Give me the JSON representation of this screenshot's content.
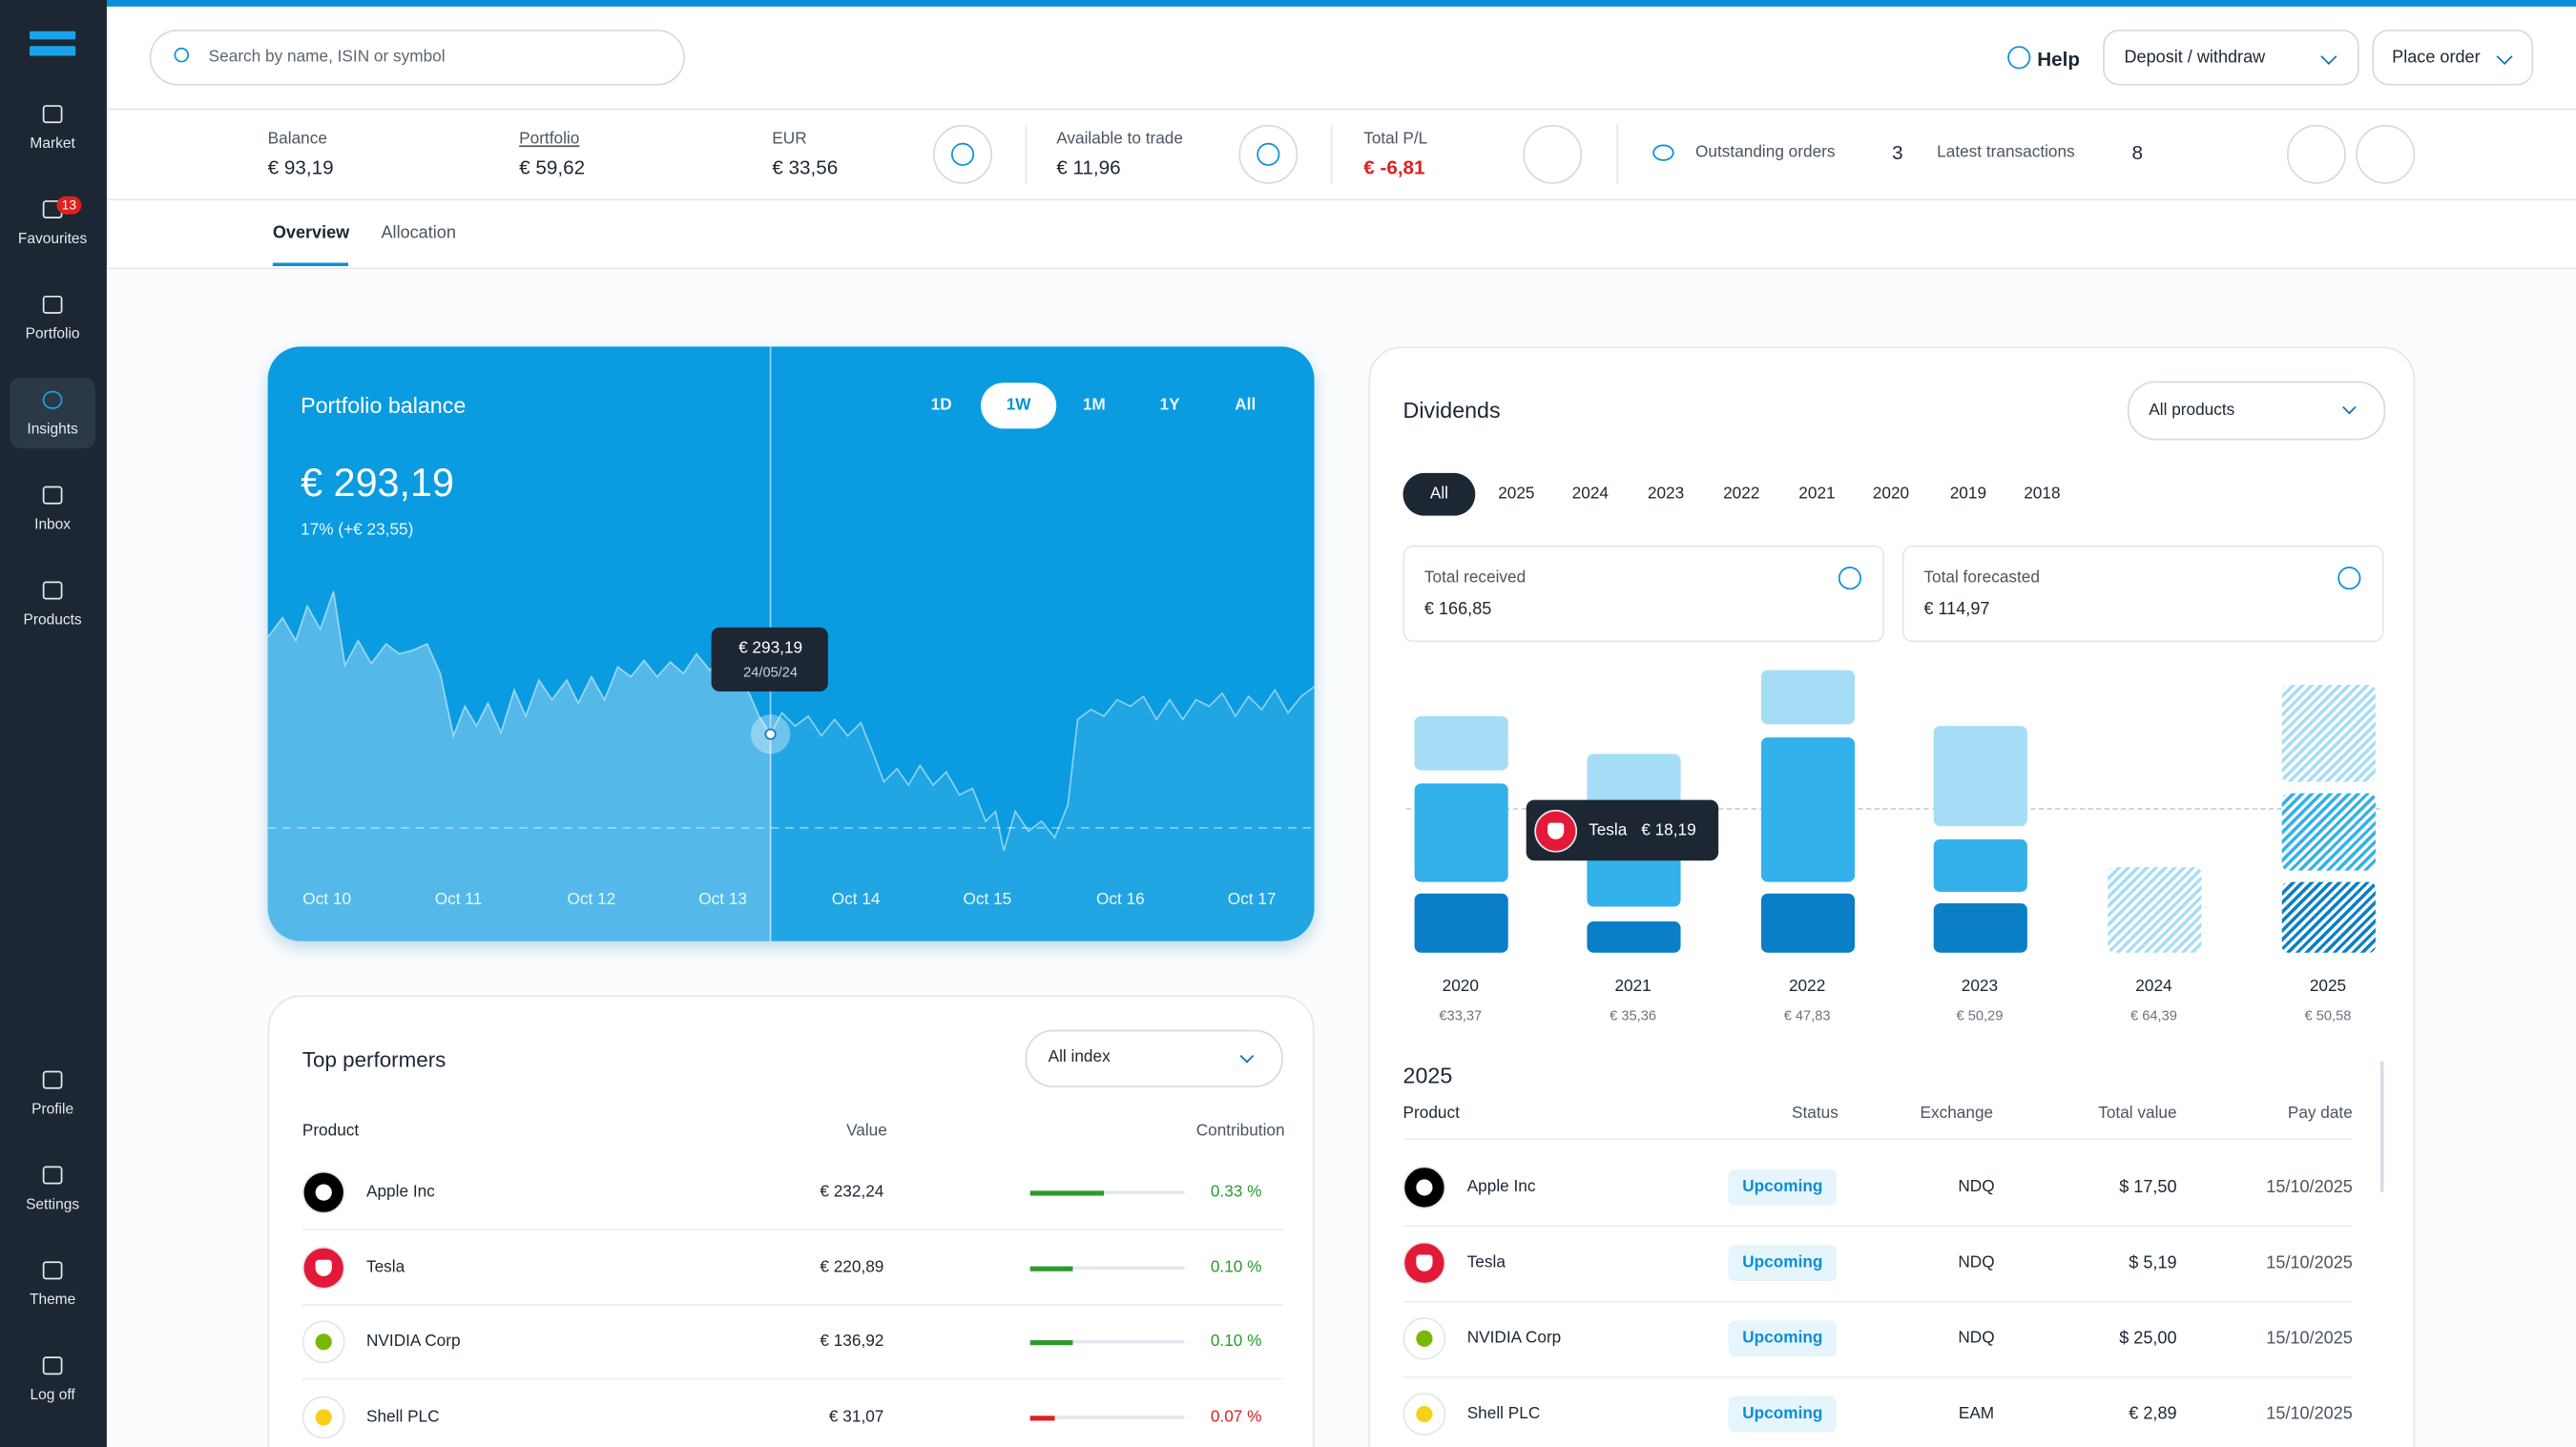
{
  "sidebar": {
    "top": [
      {
        "label": "Market"
      },
      {
        "label": "Favourites",
        "badge": 13
      },
      {
        "label": "Portfolio"
      },
      {
        "label": "Insights"
      },
      {
        "label": "Inbox"
      },
      {
        "label": "Products"
      }
    ],
    "bottom": [
      {
        "label": "Profile"
      },
      {
        "label": "Settings"
      },
      {
        "label": "Theme"
      },
      {
        "label": "Log off"
      }
    ]
  },
  "header": {
    "search_placeholder": "Search by name, ISIN or symbol",
    "help": "Help",
    "deposit": "Deposit / withdraw",
    "place_order": "Place order"
  },
  "summary": {
    "items": [
      {
        "label": "Balance",
        "value": "€ 93,19"
      },
      {
        "label": "Portfolio",
        "value": "€ 59,62"
      },
      {
        "label": "EUR",
        "value": "€ 33,56"
      },
      {
        "label": "Available to trade",
        "value": "€ 11,96"
      },
      {
        "label": "Total P/L",
        "value": "€ -6,81"
      }
    ],
    "outstanding_orders": {
      "label": "Outstanding orders",
      "value": 3
    },
    "latest_transactions": {
      "label": "Latest transactions",
      "value": 8
    }
  },
  "tabs": [
    "Overview",
    "Allocation"
  ],
  "portfolio_balance": {
    "title": "Portfolio balance",
    "ranges": [
      "1D",
      "1W",
      "1M",
      "1Y",
      "All"
    ],
    "value": "€ 293,19",
    "change": "17% (+€ 23,55)",
    "tooltip": {
      "value": "€ 293,19",
      "date": "24/05/24"
    },
    "x_labels": [
      "Oct 10",
      "Oct 11",
      "Oct 12",
      "Oct 13",
      "Oct 14",
      "Oct 15",
      "Oct 16",
      "Oct 17"
    ]
  },
  "top_performers": {
    "title": "Top performers",
    "filter": "All index",
    "columns": [
      "Product",
      "Value",
      "Contribution"
    ],
    "rows": [
      {
        "product": "Apple Inc",
        "value": "€ 232,24",
        "contribution": "0.33 %"
      },
      {
        "product": "Tesla",
        "value": "€ 220,89",
        "contribution": "0.10 %"
      },
      {
        "product": "NVIDIA Corp",
        "value": "€ 136,92",
        "contribution": "0.10 %"
      },
      {
        "product": "Shell PLC",
        "value": "€ 31,07",
        "contribution": "0.07 %"
      }
    ]
  },
  "dividends": {
    "title": "Dividends",
    "filter": "All products",
    "years": [
      "All",
      "2025",
      "2024",
      "2023",
      "2022",
      "2021",
      "2020",
      "2019",
      "2018"
    ],
    "total_received": {
      "label": "Total received",
      "value": "€ 166,85"
    },
    "total_forecasted": {
      "label": "Total forecasted",
      "value": "€ 114,97"
    },
    "bars": [
      {
        "year": "2020",
        "total": "€33,37"
      },
      {
        "year": "2021",
        "total": "€ 35,36"
      },
      {
        "year": "2022",
        "total": "€ 47,83"
      },
      {
        "year": "2023",
        "total": "€ 50,29"
      },
      {
        "year": "2024",
        "total": "€ 64,39"
      },
      {
        "year": "2025",
        "total": "€ 50,58"
      }
    ],
    "tooltip": {
      "product": "Tesla",
      "value": "€ 18,19"
    },
    "table_title": "2025",
    "columns": [
      "Product",
      "Status",
      "Exchange",
      "Total value",
      "Pay date"
    ],
    "rows": [
      {
        "product": "Apple Inc",
        "status": "Upcoming",
        "exchange": "NDQ",
        "total": "$ 17,50",
        "date": "15/10/2025"
      },
      {
        "product": "Tesla",
        "status": "Upcoming",
        "exchange": "NDQ",
        "total": "$ 5,19",
        "date": "15/10/2025"
      },
      {
        "product": "NVIDIA Corp",
        "status": "Upcoming",
        "exchange": "NDQ",
        "total": "$ 25,00",
        "date": "15/10/2025"
      },
      {
        "product": "Shell PLC",
        "status": "Upcoming",
        "exchange": "EAM",
        "total": "€ 2,89",
        "date": "15/10/2025"
      }
    ]
  }
}
